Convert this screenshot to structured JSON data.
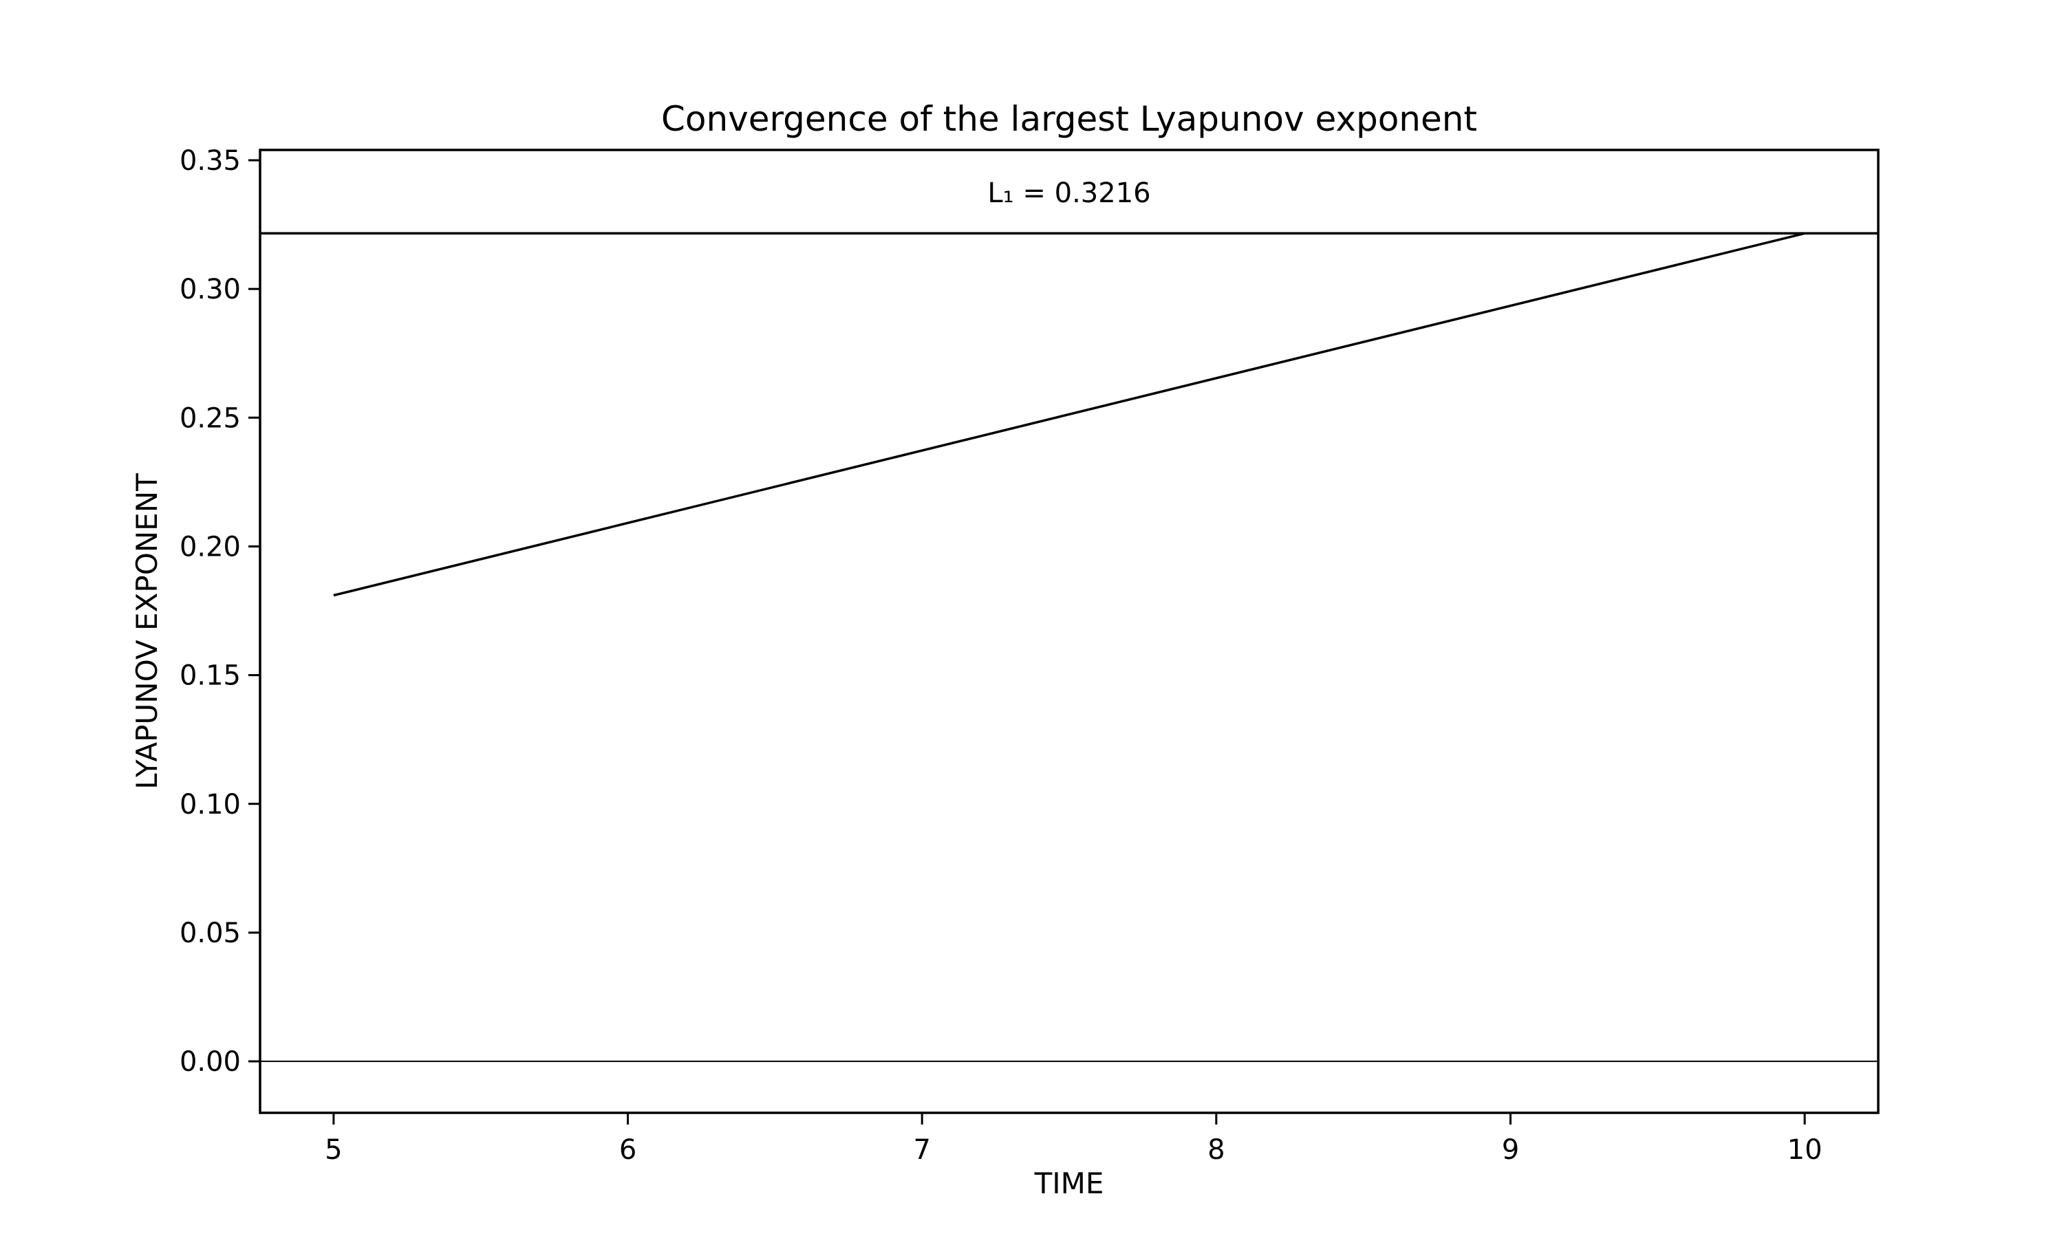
{
  "chart_data": {
    "type": "line",
    "title": "Convergence of the largest Lyapunov exponent",
    "xlabel": "TIME",
    "ylabel": "LYAPUNOV EXPONENT",
    "xlim": [
      4.75,
      10.25
    ],
    "ylim": [
      -0.02,
      0.354
    ],
    "x_ticks": [
      5,
      6,
      7,
      8,
      9,
      10
    ],
    "y_ticks": [
      0.0,
      0.05,
      0.1,
      0.15,
      0.2,
      0.25,
      0.3,
      0.35
    ],
    "x_tick_labels": [
      "5",
      "6",
      "7",
      "8",
      "9",
      "10"
    ],
    "y_tick_labels": [
      "0.00",
      "0.05",
      "0.10",
      "0.15",
      "0.20",
      "0.25",
      "0.30",
      "0.35"
    ],
    "grid": false,
    "series": [
      {
        "x": [
          5,
          10
        ],
        "values": [
          0.181,
          0.3216
        ],
        "color": "#000000"
      }
    ],
    "reference_lines": [
      {
        "axis": "y",
        "value": 0.3216,
        "color": "#000000"
      },
      {
        "axis": "y",
        "value": 0.0,
        "color": "#000000"
      }
    ],
    "annotations": [
      {
        "text": "L₁ = 0.3216",
        "x": 7.5,
        "y": 0.3375
      }
    ]
  }
}
